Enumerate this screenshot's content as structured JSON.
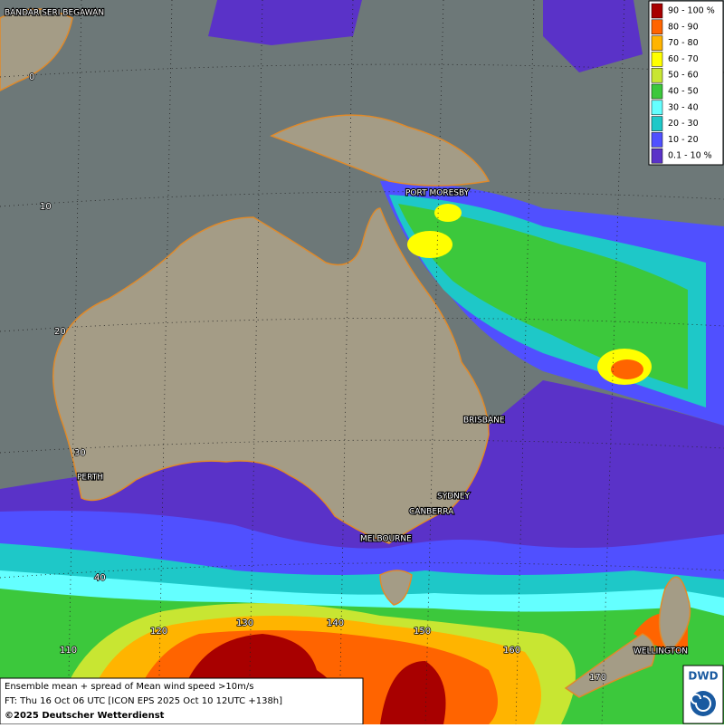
{
  "map": {
    "legend": [
      {
        "label": "90 - 100 %",
        "color": "#a80000"
      },
      {
        "label": "80 - 90",
        "color": "#ff6400"
      },
      {
        "label": "70 - 80",
        "color": "#ffb400"
      },
      {
        "label": "60 - 70",
        "color": "#ffff00"
      },
      {
        "label": "50 - 60",
        "color": "#c8e632"
      },
      {
        "label": "40 - 50",
        "color": "#3cc83c"
      },
      {
        "label": "30 - 40",
        "color": "#64ffff"
      },
      {
        "label": "20 - 30",
        "color": "#1ec8c8"
      },
      {
        "label": "10 - 20",
        "color": "#5050ff"
      },
      {
        "label": "0.1 - 10 %",
        "color": "#5a32c8"
      }
    ],
    "places": [
      "BANDAR SERI BEGAWAN",
      "PORT MORESBY",
      "BRISBANE",
      "PERTH",
      "SYDNEY",
      "CANBERRA",
      "MELBOURNE",
      "WELLINGTON"
    ],
    "latitude_labels": [
      "0",
      "10",
      "20",
      "30",
      "40"
    ],
    "longitude_labels": [
      "110",
      "120",
      "130",
      "140",
      "150",
      "160",
      "170"
    ],
    "info": {
      "line1": "Ensemble mean + spread of Mean wind speed >10m/s",
      "line2": "FT: Thu 16 Oct 06 UTC [ICON EPS 2025 Oct 10 12UTC +138h]",
      "copyright": "©2025 Deutscher Wetterdienst"
    },
    "logo": "DWD"
  }
}
